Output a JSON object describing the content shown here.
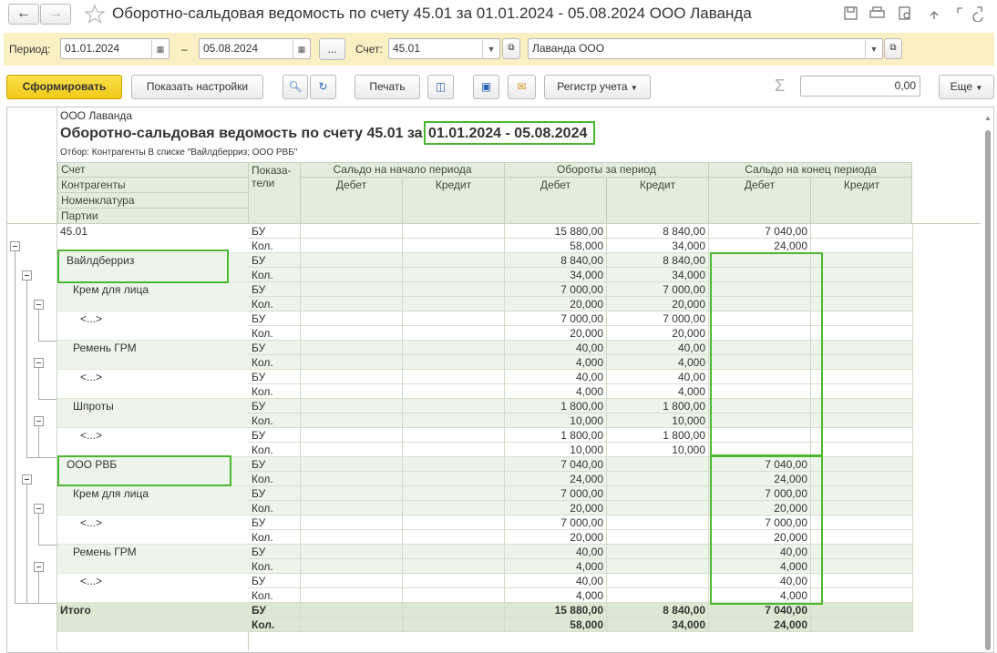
{
  "window": {
    "title": "Оборотно-сальдовая ведомость по счету 45.01 за 01.01.2024 - 05.08.2024 ООО Лаванда"
  },
  "filters": {
    "period_label": "Период:",
    "date_from": "01.01.2024",
    "dash": "–",
    "date_to": "05.08.2024",
    "more": "...",
    "account_label": "Счет:",
    "account": "45.01",
    "organization": "Лаванда ООО"
  },
  "toolbar": {
    "generate": "Сформировать",
    "show_settings": "Показать настройки",
    "print": "Печать",
    "register": "Регистр учета",
    "sum_symbol": "Σ",
    "sum_value": "0,00",
    "more": "Еще"
  },
  "report": {
    "organization": "ООО Лаванда",
    "title": "Оборотно-сальдовая ведомость по счету 45.01 за",
    "period": "01.01.2024 - 05.08.2024",
    "filter": "Отбор: Контрагенты В списке \"Вайлдберриз; ООО РВБ\"",
    "header": {
      "groupings": [
        "Счет",
        "Контрагенты",
        "Номенклатура",
        "Партии"
      ],
      "indicators": [
        "Показа-",
        "тели"
      ],
      "groups": [
        "Сальдо на начало периода",
        "Обороты за период",
        "Сальдо на конец периода"
      ],
      "subcolumns": [
        "Дебет",
        "Кредит",
        "Дебет",
        "Кредит",
        "Дебет",
        "Кредит"
      ]
    },
    "rows": [
      {
        "label": "45.01",
        "lines": [
          {
            "indicator": "БУ",
            "values": [
              null,
              null,
              "15 880,00",
              "8 840,00",
              "7 040,00",
              null
            ]
          },
          {
            "indicator": "Кол.",
            "values": [
              null,
              null,
              "58,000",
              "34,000",
              "24,000",
              null
            ]
          }
        ],
        "children": [
          {
            "label": "Вайлдберриз",
            "lines": [
              {
                "indicator": "БУ",
                "values": [
                  null,
                  null,
                  "8 840,00",
                  "8 840,00",
                  null,
                  null
                ]
              },
              {
                "indicator": "Кол.",
                "values": [
                  null,
                  null,
                  "34,000",
                  "34,000",
                  null,
                  null
                ]
              }
            ],
            "children": [
              {
                "label": "Крем для лица",
                "lines": [
                  {
                    "indicator": "БУ",
                    "values": [
                      null,
                      null,
                      "7 000,00",
                      "7 000,00",
                      null,
                      null
                    ]
                  },
                  {
                    "indicator": "Кол.",
                    "values": [
                      null,
                      null,
                      "20,000",
                      "20,000",
                      null,
                      null
                    ]
                  }
                ],
                "children": [
                  {
                    "label": "<...>",
                    "lines": [
                      {
                        "indicator": "БУ",
                        "values": [
                          null,
                          null,
                          "7 000,00",
                          "7 000,00",
                          null,
                          null
                        ]
                      },
                      {
                        "indicator": "Кол.",
                        "values": [
                          null,
                          null,
                          "20,000",
                          "20,000",
                          null,
                          null
                        ]
                      }
                    ]
                  }
                ]
              },
              {
                "label": "Ремень ГРМ",
                "lines": [
                  {
                    "indicator": "БУ",
                    "values": [
                      null,
                      null,
                      "40,00",
                      "40,00",
                      null,
                      null
                    ]
                  },
                  {
                    "indicator": "Кол.",
                    "values": [
                      null,
                      null,
                      "4,000",
                      "4,000",
                      null,
                      null
                    ]
                  }
                ],
                "children": [
                  {
                    "label": "<...>",
                    "lines": [
                      {
                        "indicator": "БУ",
                        "values": [
                          null,
                          null,
                          "40,00",
                          "40,00",
                          null,
                          null
                        ]
                      },
                      {
                        "indicator": "Кол.",
                        "values": [
                          null,
                          null,
                          "4,000",
                          "4,000",
                          null,
                          null
                        ]
                      }
                    ]
                  }
                ]
              },
              {
                "label": "Шпроты",
                "lines": [
                  {
                    "indicator": "БУ",
                    "values": [
                      null,
                      null,
                      "1 800,00",
                      "1 800,00",
                      null,
                      null
                    ]
                  },
                  {
                    "indicator": "Кол.",
                    "values": [
                      null,
                      null,
                      "10,000",
                      "10,000",
                      null,
                      null
                    ]
                  }
                ],
                "children": [
                  {
                    "label": "<...>",
                    "lines": [
                      {
                        "indicator": "БУ",
                        "values": [
                          null,
                          null,
                          "1 800,00",
                          "1 800,00",
                          null,
                          null
                        ]
                      },
                      {
                        "indicator": "Кол.",
                        "values": [
                          null,
                          null,
                          "10,000",
                          "10,000",
                          null,
                          null
                        ]
                      }
                    ]
                  }
                ]
              }
            ]
          },
          {
            "label": "ООО РВБ",
            "lines": [
              {
                "indicator": "БУ",
                "values": [
                  null,
                  null,
                  "7 040,00",
                  null,
                  "7 040,00",
                  null
                ]
              },
              {
                "indicator": "Кол.",
                "values": [
                  null,
                  null,
                  "24,000",
                  null,
                  "24,000",
                  null
                ]
              }
            ],
            "children": [
              {
                "label": "Крем для лица",
                "lines": [
                  {
                    "indicator": "БУ",
                    "values": [
                      null,
                      null,
                      "7 000,00",
                      null,
                      "7 000,00",
                      null
                    ]
                  },
                  {
                    "indicator": "Кол.",
                    "values": [
                      null,
                      null,
                      "20,000",
                      null,
                      "20,000",
                      null
                    ]
                  }
                ],
                "children": [
                  {
                    "label": "<...>",
                    "lines": [
                      {
                        "indicator": "БУ",
                        "values": [
                          null,
                          null,
                          "7 000,00",
                          null,
                          "7 000,00",
                          null
                        ]
                      },
                      {
                        "indicator": "Кол.",
                        "values": [
                          null,
                          null,
                          "20,000",
                          null,
                          "20,000",
                          null
                        ]
                      }
                    ]
                  }
                ]
              },
              {
                "label": "Ремень ГРМ",
                "lines": [
                  {
                    "indicator": "БУ",
                    "values": [
                      null,
                      null,
                      "40,00",
                      null,
                      "40,00",
                      null
                    ]
                  },
                  {
                    "indicator": "Кол.",
                    "values": [
                      null,
                      null,
                      "4,000",
                      null,
                      "4,000",
                      null
                    ]
                  }
                ],
                "children": [
                  {
                    "label": "<...>",
                    "lines": [
                      {
                        "indicator": "БУ",
                        "values": [
                          null,
                          null,
                          "40,00",
                          null,
                          "40,00",
                          null
                        ]
                      },
                      {
                        "indicator": "Кол.",
                        "values": [
                          null,
                          null,
                          "4,000",
                          null,
                          "4,000",
                          null
                        ]
                      }
                    ]
                  }
                ]
              }
            ]
          }
        ]
      }
    ],
    "total": {
      "label": "Итого",
      "lines": [
        {
          "indicator": "БУ",
          "values": [
            null,
            null,
            "15 880,00",
            "8 840,00",
            "7 040,00",
            null
          ]
        },
        {
          "indicator": "Кол.",
          "values": [
            null,
            null,
            "58,000",
            "34,000",
            "24,000",
            null
          ]
        }
      ]
    }
  }
}
